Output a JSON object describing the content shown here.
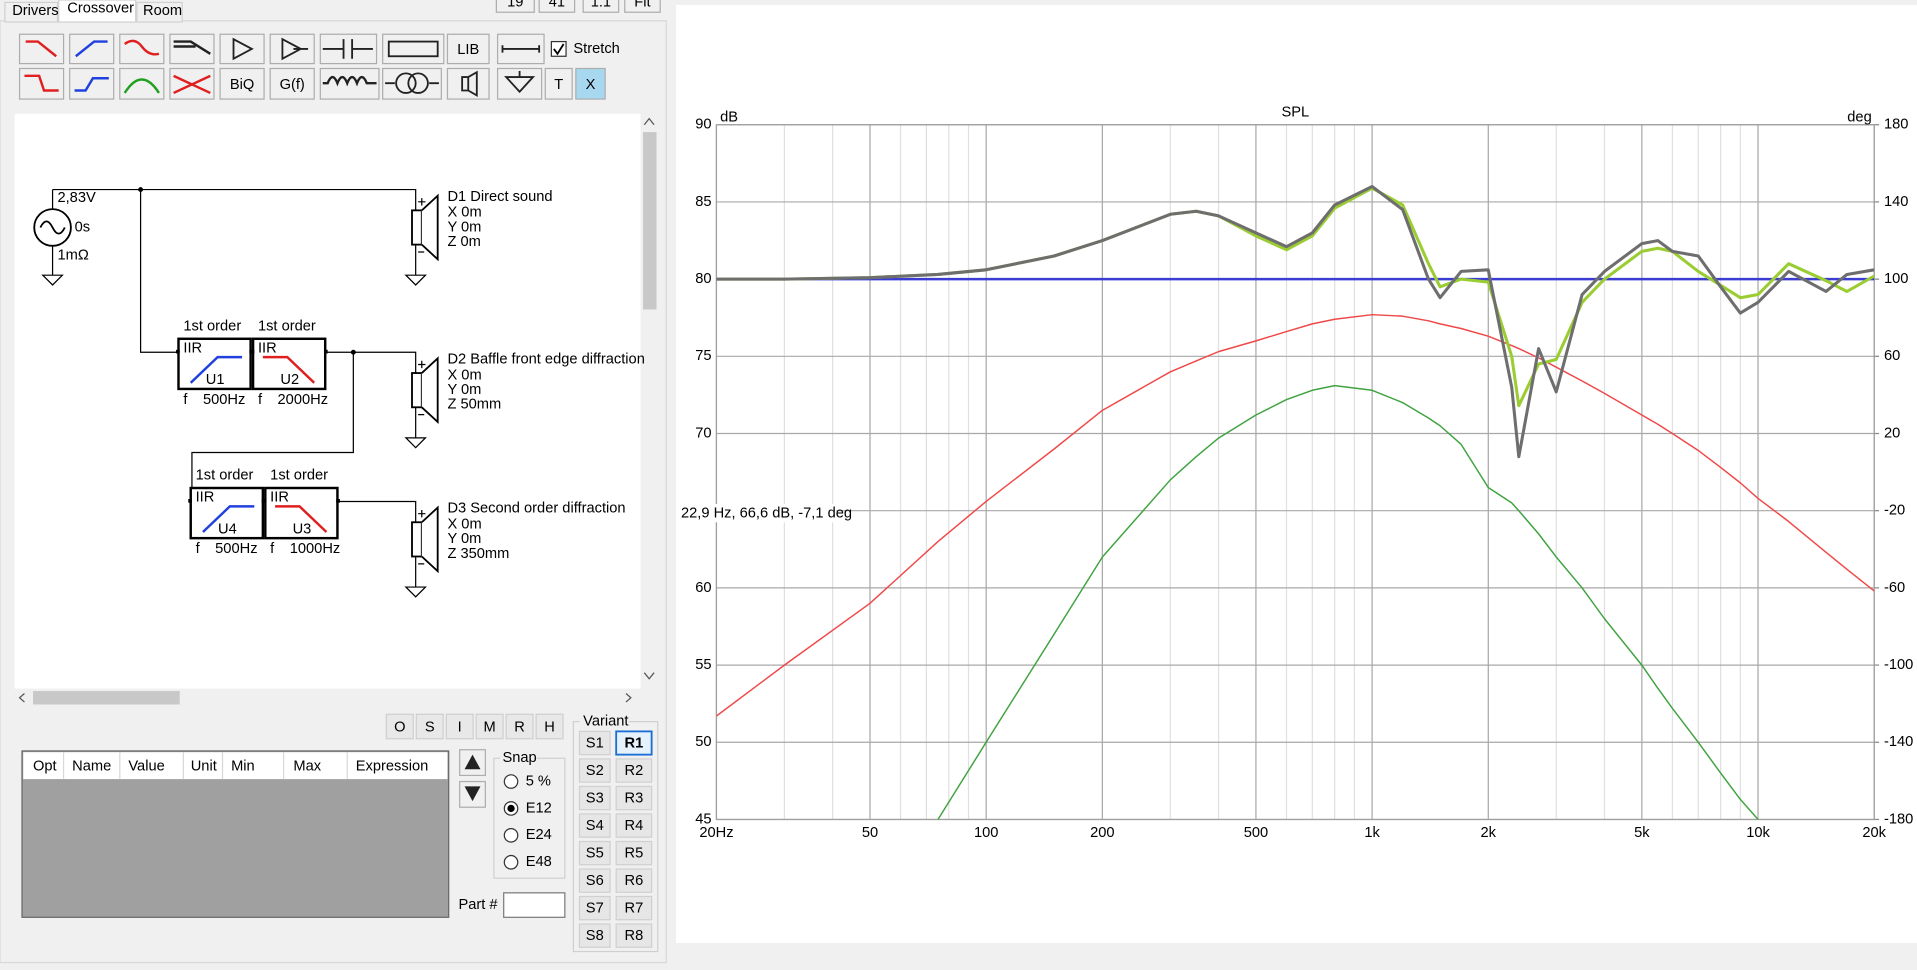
{
  "tabs": [
    "Drivers",
    "Crossover",
    "Room"
  ],
  "view_buttons": [
    "19",
    "41",
    "1:1",
    "Fit"
  ],
  "toolbar": {
    "buttons": [
      "LIB",
      "BiQ",
      "G(f)",
      "T",
      "X"
    ],
    "stretch": "Stretch",
    "stretch_checked": true
  },
  "schematic": {
    "source": {
      "voltage": "2,83V",
      "delay": "0s",
      "resistance": "1mΩ"
    },
    "filters": [
      {
        "order": "1st order",
        "kind": "IIR",
        "id": "U1",
        "f_label": "f",
        "frequency": "500Hz"
      },
      {
        "order": "1st order",
        "kind": "IIR",
        "id": "U2",
        "f_label": "f",
        "frequency": "2000Hz"
      },
      {
        "order": "1st order",
        "kind": "IIR",
        "id": "U4",
        "f_label": "f",
        "frequency": "500Hz"
      },
      {
        "order": "1st order",
        "kind": "IIR",
        "id": "U3",
        "f_label": "f",
        "frequency": "1000Hz"
      }
    ],
    "drivers": [
      {
        "name": "D1 Direct sound",
        "x": "X 0m",
        "y": "Y 0m",
        "z": "Z 0m"
      },
      {
        "name": "D2 Baffle front edge diffraction",
        "x": "X 0m",
        "y": "Y 0m",
        "z": "Z 50mm"
      },
      {
        "name": "D3 Second order diffraction",
        "x": "X 0m",
        "y": "Y 0m",
        "z": "Z 350mm"
      }
    ]
  },
  "filter_buttons": [
    "O",
    "S",
    "I",
    "M",
    "R",
    "H"
  ],
  "table": {
    "headers": [
      "Opt",
      "Name",
      "Value",
      "Unit",
      "Min",
      "Max",
      "Expression"
    ]
  },
  "snap": {
    "title": "Snap",
    "options": [
      "5 %",
      "E12",
      "E24",
      "E48"
    ],
    "selected": 1
  },
  "part_label": "Part #",
  "variant": {
    "title": "Variant",
    "s": [
      "S1",
      "S2",
      "S3",
      "S4",
      "S5",
      "S6",
      "S7",
      "S8"
    ],
    "r": [
      "R1",
      "R2",
      "R3",
      "R4",
      "R5",
      "R6",
      "R7",
      "R8"
    ],
    "active": 0
  },
  "chart_data": {
    "type": "line",
    "title": "SPL",
    "ylabel": "dB",
    "y2label": "deg",
    "annotation": "22,9 Hz, 66,6 dB, -7,1 deg",
    "xscale": "log",
    "grid": true,
    "x": [
      20,
      30,
      50,
      75,
      100,
      150,
      200,
      300,
      350,
      400,
      500,
      600,
      700,
      800,
      1000,
      1200,
      1400,
      1500,
      1700,
      2000,
      2300,
      2400,
      2700,
      3000,
      3500,
      4000,
      5000,
      5500,
      6000,
      7000,
      8000,
      9000,
      10000,
      12000,
      15000,
      17000,
      20000
    ],
    "xlim": [
      20,
      20000
    ],
    "xticks": [
      {
        "value": 20,
        "label": "20Hz"
      },
      50,
      100,
      200,
      500,
      {
        "value": 1000,
        "label": "1k"
      },
      {
        "value": 2000,
        "label": "2k"
      },
      {
        "value": 5000,
        "label": "5k"
      },
      {
        "value": 10000,
        "label": "10k"
      },
      {
        "value": 20000,
        "label": "20k"
      }
    ],
    "xminorticks": [
      30,
      40,
      60,
      70,
      80,
      90,
      300,
      400,
      600,
      700,
      800,
      900,
      3000,
      4000,
      6000,
      7000,
      8000,
      9000
    ],
    "ylim": [
      45,
      90
    ],
    "yticks": [
      90,
      85,
      80,
      75,
      70,
      65,
      60,
      55,
      50,
      45
    ],
    "y2lim": [
      -180,
      180
    ],
    "y2ticks": [
      180,
      140,
      100,
      60,
      20,
      -20,
      -60,
      -100,
      -140,
      -180
    ],
    "series": [
      {
        "color": "#3c3cd2",
        "values": [
          80,
          80,
          80,
          80,
          80,
          80,
          80,
          80,
          80,
          80,
          80,
          80,
          80,
          80,
          80,
          80,
          80,
          80,
          80,
          80,
          80,
          80,
          80,
          80,
          80,
          80,
          80,
          80,
          80,
          80,
          80,
          80,
          80,
          80,
          80,
          80,
          80
        ]
      },
      {
        "color": "#f04848",
        "values": [
          51.7,
          55,
          59,
          63,
          65.6,
          69,
          71.5,
          74,
          74.7,
          75.3,
          76,
          76.6,
          77.1,
          77.4,
          77.7,
          77.6,
          77.3,
          77.1,
          76.8,
          76.3,
          75.7,
          75.5,
          74.9,
          74.3,
          73.4,
          72.6,
          71.2,
          70.6,
          70,
          68.9,
          67.8,
          66.8,
          65.8,
          64.3,
          62.3,
          61.2,
          59.8
        ]
      },
      {
        "color": "#3fa33f",
        "values": [
          null,
          null,
          null,
          45,
          50,
          57,
          62,
          67,
          68.5,
          69.7,
          71.2,
          72.2,
          72.8,
          73.1,
          72.8,
          72,
          71,
          70.5,
          69.3,
          66.5,
          65.5,
          65,
          63.5,
          62,
          60,
          58,
          55,
          53.5,
          52.2,
          50,
          48,
          46.3,
          45,
          null,
          null,
          null,
          null
        ]
      },
      {
        "color": "#9acd32",
        "values": [
          80,
          80,
          80.1,
          80.3,
          80.6,
          81.5,
          82.5,
          84.2,
          84.4,
          84.1,
          82.8,
          81.9,
          82.8,
          84.6,
          85.9,
          84.8,
          81,
          79.5,
          80,
          79.8,
          75,
          71.8,
          74.5,
          74.8,
          78.5,
          80,
          81.8,
          82,
          81.8,
          80.5,
          79.6,
          78.8,
          79,
          81,
          79.9,
          79.2,
          80.2
        ]
      },
      {
        "color": "#6e6e6e",
        "values": [
          80,
          80,
          80.1,
          80.3,
          80.6,
          81.5,
          82.5,
          84.2,
          84.4,
          84.1,
          83,
          82.1,
          83,
          84.8,
          86,
          84.5,
          80,
          78.8,
          80.5,
          80.6,
          73,
          68.5,
          75.5,
          72.7,
          79,
          80.5,
          82.3,
          82.5,
          81.8,
          81.5,
          79.5,
          77.8,
          78.5,
          80.5,
          79.2,
          80.3,
          80.6
        ]
      }
    ]
  }
}
